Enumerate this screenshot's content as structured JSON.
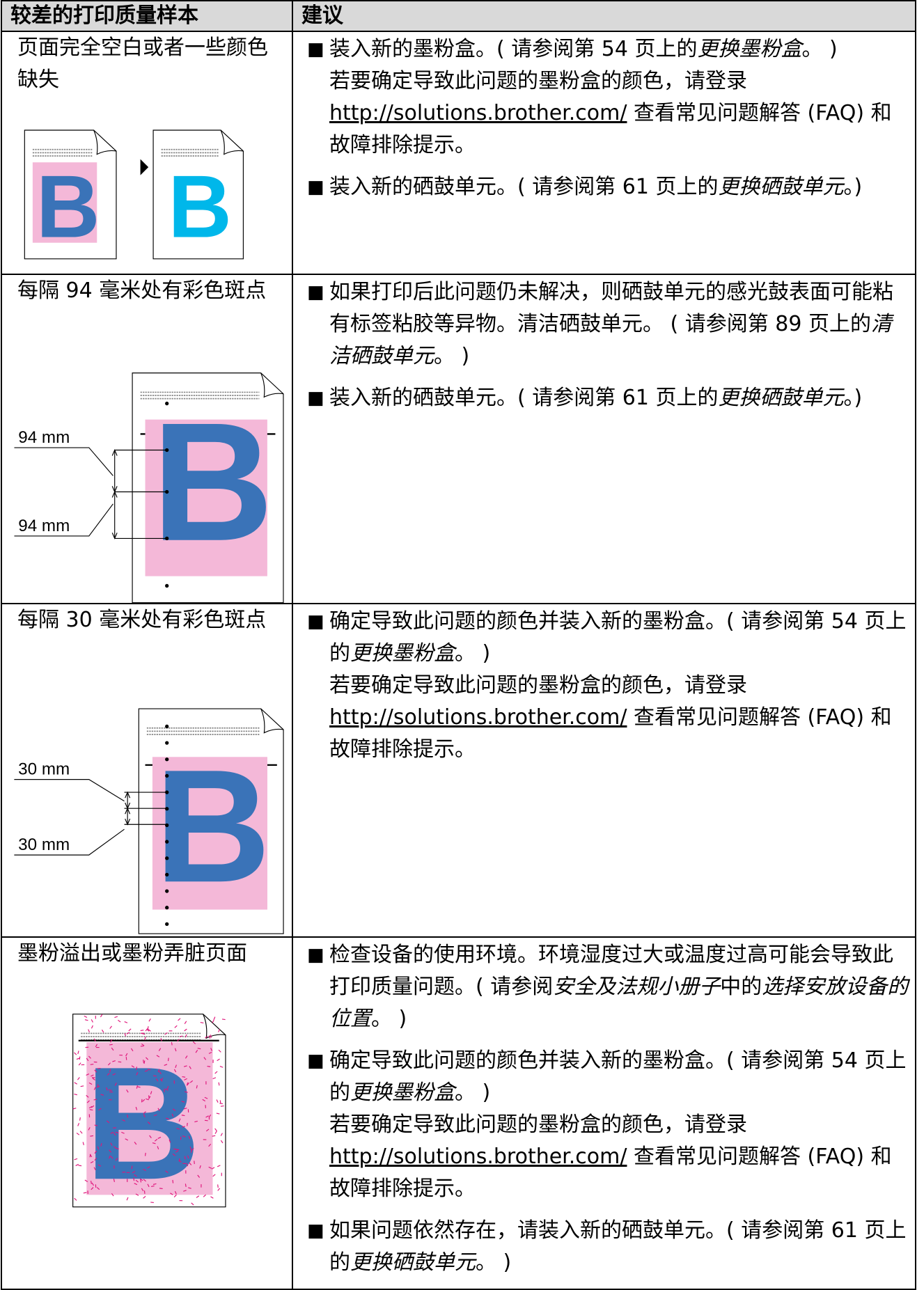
{
  "table": {
    "headers": [
      "较差的打印质量样本",
      "建议"
    ],
    "rows": [
      {
        "problem": "页面完全空白或者一些颜色缺失",
        "sample_letter": "B",
        "suggestions": [
          [
            [
              "装入新的墨粉盒。( 请参阅第 54 页上的",
              {
                "text": "更换墨粉盒",
                "style": "italic"
              },
              "。 )"
            ],
            [
              "若要确定导致此问题的墨粉盒的颜色，请登录 ",
              {
                "text": "http://solutions.brother.com/",
                "style": "link"
              },
              " 查看常见问题解答 (FAQ) 和故障排除提示。"
            ]
          ],
          [
            [
              "装入新的硒鼓单元。( 请参阅第 61 页上的",
              {
                "text": "更换硒鼓单元",
                "style": "italic"
              },
              "。)"
            ]
          ]
        ]
      },
      {
        "problem": "每隔 94 毫米处有彩色斑点",
        "sample_letter": "B",
        "labels": [
          "94 mm",
          "94 mm"
        ],
        "suggestions": [
          [
            [
              "如果打印后此问题仍未解决，则硒鼓单元的感光鼓表面可能粘有标签粘胶等异物。清洁硒鼓单元。 ( 请参阅第 89 页上的",
              {
                "text": "清洁硒鼓单元",
                "style": "italic"
              },
              "。 )"
            ]
          ],
          [
            [
              "装入新的硒鼓单元。( 请参阅第 61 页上的",
              {
                "text": "更换硒鼓单元",
                "style": "italic"
              },
              "。)"
            ]
          ]
        ]
      },
      {
        "problem": "每隔 30 毫米处有彩色斑点",
        "sample_letter": "B",
        "labels": [
          "30 mm",
          "30 mm"
        ],
        "suggestions": [
          [
            [
              "确定导致此问题的颜色并装入新的墨粉盒。( 请参阅第 54 页上的",
              {
                "text": "更换墨粉盒",
                "style": "italic"
              },
              "。 )"
            ],
            [
              "若要确定导致此问题的墨粉盒的颜色，请登录 ",
              {
                "text": "http://solutions.brother.com/",
                "style": "link"
              },
              " 查看常见问题解答 (FAQ) 和故障排除提示。"
            ]
          ]
        ]
      },
      {
        "problem": "墨粉溢出或墨粉弄脏页面",
        "sample_letter": "B",
        "suggestions": [
          [
            [
              "检查设备的使用环境。环境湿度过大或温度过高可能会导致此打印质量问题。( 请参阅",
              {
                "text": "安全及法规小册子",
                "style": "italic"
              },
              "中的",
              {
                "text": "选择安放设备的位置",
                "style": "italic"
              },
              "。 )"
            ]
          ],
          [
            [
              "确定导致此问题的颜色并装入新的墨粉盒。( 请参阅第 54 页上的",
              {
                "text": "更换墨粉盒",
                "style": "italic"
              },
              "。 )"
            ],
            [
              "若要确定导致此问题的墨粉盒的颜色，请登录 ",
              {
                "text": "http://solutions.brother.com/",
                "style": "link"
              },
              " 查看常见问题解答 (FAQ) 和故障排除提示。"
            ]
          ],
          [
            [
              "如果问题依然存在，请装入新的硒鼓单元。( 请参阅第 61 页上的",
              {
                "text": "更换硒鼓单元",
                "style": "italic"
              },
              "。 )"
            ]
          ]
        ]
      }
    ]
  }
}
